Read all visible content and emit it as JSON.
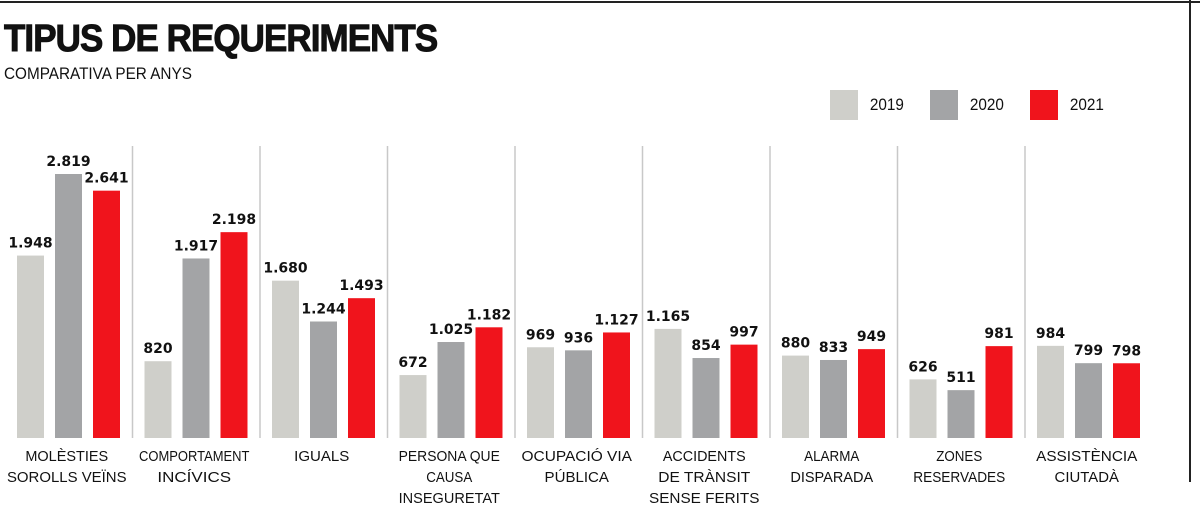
{
  "chart_data": {
    "type": "bar",
    "title": "TIPUS DE REQUERIMENTS",
    "subtitle": "COMPARATIVA PER ANYS",
    "legend_position": "top-right",
    "grid": false,
    "ylim": [
      0,
      3000
    ],
    "categories": [
      [
        "MOLÈSTIES",
        "SOROLLS VEÏNS"
      ],
      [
        "COMPORTAMENT",
        "INCÍVICS"
      ],
      [
        "IGUALS"
      ],
      [
        "PERSONA QUE",
        "CAUSA",
        "INSEGURETAT"
      ],
      [
        "OCUPACIÓ VIA",
        "PÚBLICA"
      ],
      [
        "ACCIDENTS",
        "DE TRÀNSIT",
        "SENSE FERITS"
      ],
      [
        "ALARMA",
        "DISPARADA"
      ],
      [
        "ZONES",
        "RESERVADES"
      ],
      [
        "ASSISTÈNCIA",
        "CIUTADÀ"
      ]
    ],
    "series": [
      {
        "name": "2019",
        "color": "#cfcfca",
        "values": [
          1948,
          820,
          1680,
          672,
          969,
          1165,
          880,
          626,
          984
        ]
      },
      {
        "name": "2020",
        "color": "#a3a4a6",
        "values": [
          2819,
          1917,
          1244,
          1025,
          936,
          854,
          833,
          511,
          799
        ]
      },
      {
        "name": "2021",
        "color": "#f0141c",
        "values": [
          2641,
          2198,
          1493,
          1182,
          1127,
          997,
          949,
          981,
          798
        ]
      }
    ]
  }
}
